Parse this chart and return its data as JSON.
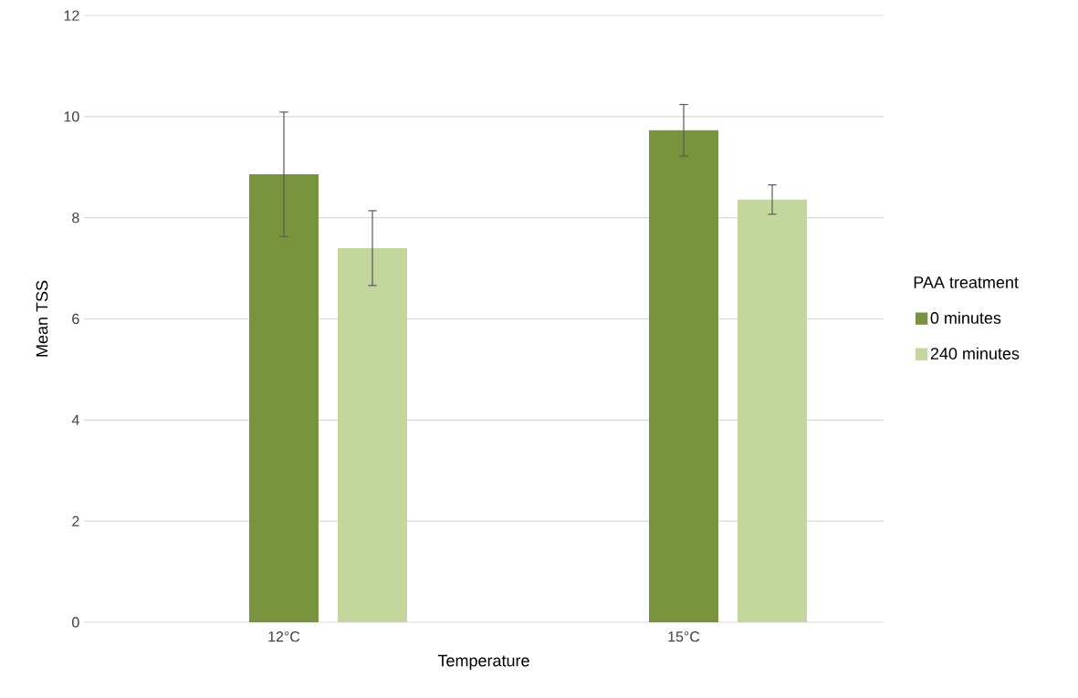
{
  "chart_data": {
    "type": "bar",
    "xlabel": "Temperature",
    "ylabel": "Mean TSS",
    "legend_title": "PAA treatment",
    "categories": [
      "12°C",
      "15°C"
    ],
    "series": [
      {
        "name": "0 minutes",
        "color": "#77933c",
        "values": [
          8.86,
          9.73
        ],
        "errors": [
          1.23,
          0.51
        ]
      },
      {
        "name": "240 minutes",
        "color": "#c3d69b",
        "values": [
          7.4,
          8.36
        ],
        "errors": [
          0.74,
          0.29
        ]
      }
    ],
    "ylim": [
      0,
      12
    ],
    "yticks": [
      0,
      2,
      4,
      6,
      8,
      10,
      12
    ],
    "grid": "y",
    "legend": "right"
  }
}
